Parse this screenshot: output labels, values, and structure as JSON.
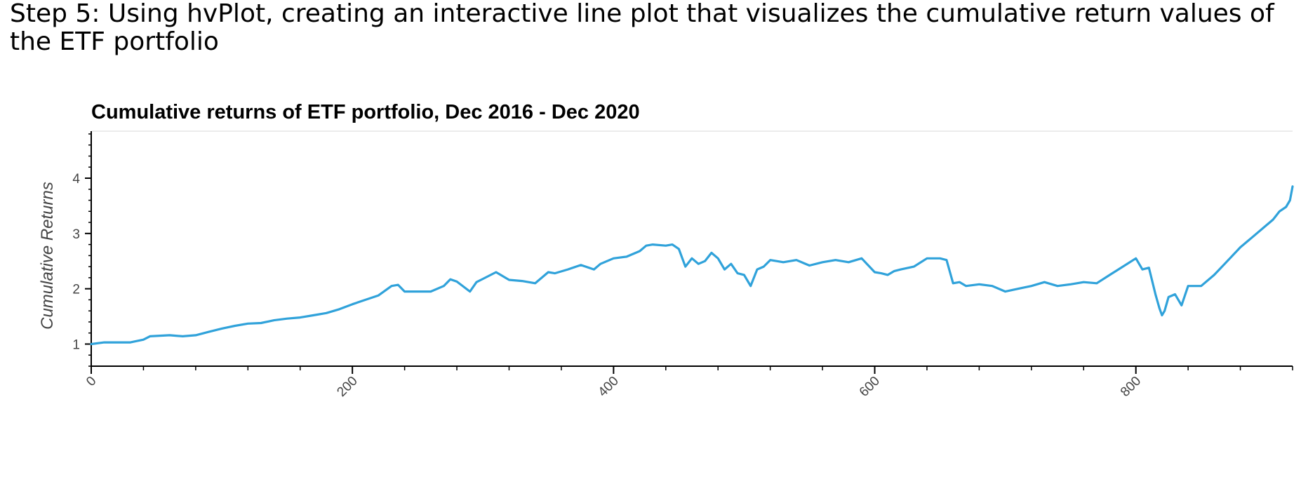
{
  "heading": "Step 5: Using hvPlot, creating an interactive line plot that visualizes the cumulative return values of the ETF portfolio",
  "chart_data": {
    "type": "line",
    "title": "Cumulative returns of ETF portfolio, Dec 2016 - Dec 2020",
    "xlabel": "",
    "ylabel": "Cumulative Returns",
    "xlim": [
      0,
      920
    ],
    "ylim": [
      0.6,
      4.85
    ],
    "xticks": [
      0,
      200,
      400,
      600,
      800
    ],
    "yticks": [
      1,
      2,
      3,
      4
    ],
    "color": "#30a2da",
    "grid": false,
    "legend": "none",
    "series": [
      {
        "x": [
          0,
          10,
          20,
          30,
          40,
          45,
          60,
          70,
          80,
          90,
          100,
          110,
          120,
          130,
          140,
          150,
          160,
          170,
          180,
          190,
          200,
          210,
          220,
          230,
          235,
          240,
          250,
          260,
          270,
          275,
          280,
          290,
          295,
          300,
          310,
          320,
          330,
          340,
          350,
          355,
          365,
          375,
          385,
          390,
          400,
          410,
          420,
          425,
          430,
          440,
          445,
          450,
          455,
          460,
          465,
          470,
          475,
          480,
          485,
          490,
          495,
          500,
          505,
          510,
          515,
          520,
          530,
          540,
          550,
          560,
          570,
          580,
          590,
          600,
          605,
          610,
          615,
          620,
          630,
          640,
          650,
          655,
          660,
          665,
          670,
          680,
          690,
          700,
          710,
          720,
          730,
          740,
          750,
          760,
          770,
          780,
          790,
          800,
          805,
          810,
          815,
          818,
          820,
          822,
          825,
          830,
          835,
          840,
          850,
          860,
          870,
          880,
          890,
          900,
          905,
          910,
          915,
          918,
          920
        ],
        "y": [
          1.0,
          1.03,
          1.03,
          1.03,
          1.08,
          1.14,
          1.16,
          1.14,
          1.16,
          1.22,
          1.28,
          1.33,
          1.37,
          1.38,
          1.43,
          1.46,
          1.48,
          1.52,
          1.56,
          1.63,
          1.72,
          1.8,
          1.88,
          2.05,
          2.07,
          1.95,
          1.95,
          1.95,
          2.05,
          2.17,
          2.13,
          1.95,
          2.12,
          2.18,
          2.3,
          2.16,
          2.14,
          2.1,
          2.3,
          2.28,
          2.35,
          2.43,
          2.35,
          2.45,
          2.55,
          2.58,
          2.68,
          2.78,
          2.8,
          2.78,
          2.8,
          2.72,
          2.4,
          2.55,
          2.45,
          2.5,
          2.65,
          2.55,
          2.35,
          2.45,
          2.28,
          2.25,
          2.05,
          2.35,
          2.4,
          2.52,
          2.48,
          2.52,
          2.42,
          2.48,
          2.52,
          2.48,
          2.55,
          2.3,
          2.28,
          2.25,
          2.32,
          2.35,
          2.4,
          2.55,
          2.55,
          2.52,
          2.1,
          2.12,
          2.05,
          2.08,
          2.05,
          1.95,
          2.0,
          2.05,
          2.12,
          2.05,
          2.08,
          2.12,
          2.1,
          2.25,
          2.4,
          2.55,
          2.35,
          2.38,
          1.9,
          1.65,
          1.52,
          1.6,
          1.85,
          1.9,
          1.7,
          2.05,
          2.05,
          2.25,
          2.5,
          2.75,
          2.95,
          3.15,
          3.25,
          3.4,
          3.48,
          3.6,
          3.85
        ]
      }
    ]
  }
}
